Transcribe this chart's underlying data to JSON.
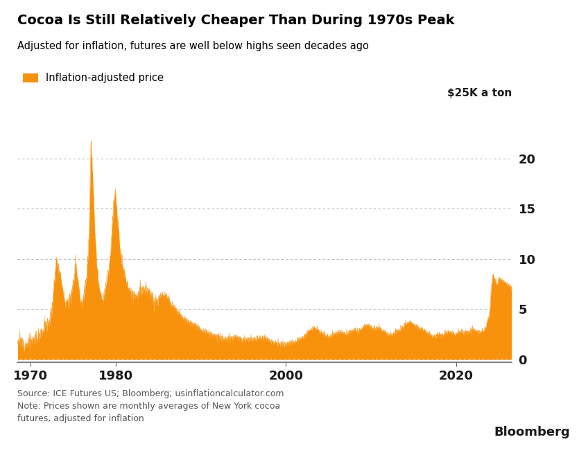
{
  "title": "Cocoa Is Still Relatively Cheaper Than During 1970s Peak",
  "subtitle": "Adjusted for inflation, futures are well below highs seen decades ago",
  "legend_label": "Inflation-adjusted price",
  "ylabel_right": "$25K a ton",
  "source_text": "Source: ICE Futures US; Bloomberg; usinflationcalculator.com\nNote: Prices shown are monthly averages of New York cocoa\nfutures, adjusted for inflation",
  "bloomberg_label": "Bloomberg",
  "fill_color": "#F8920D",
  "background_color": "#FFFFFF",
  "grid_color": "#BBBBBB",
  "title_color": "#000000",
  "subtitle_color": "#000000",
  "source_color": "#555555",
  "yticks": [
    0,
    5,
    10,
    15,
    20
  ],
  "ylim": [
    -0.3,
    24.5
  ],
  "xlim_start": 1968.5,
  "xlim_end": 2026.5,
  "xticks": [
    1970,
    1980,
    2000,
    2020
  ]
}
